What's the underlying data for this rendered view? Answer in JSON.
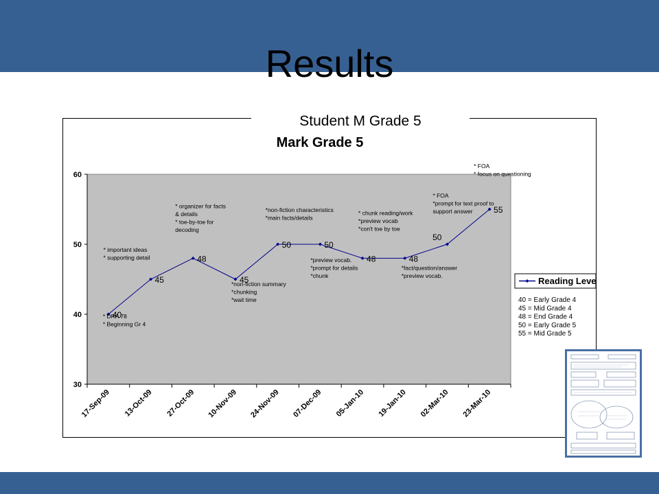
{
  "slide": {
    "title": "Results",
    "subtitle": "Student M  Grade 5"
  },
  "colors": {
    "band": "#376092",
    "plot_bg": "#c0c0c0",
    "series": "#00008b"
  },
  "thumbnail": {
    "icon": "document-thumbnail-icon"
  },
  "chart_data": {
    "type": "line",
    "title": "Mark Grade 5",
    "xlabel": "",
    "ylabel": "",
    "ylim": [
      30,
      60
    ],
    "yticks": [
      30,
      40,
      50,
      60
    ],
    "categories": [
      "17-Sep-09",
      "13-Oct-09",
      "27-Oct-09",
      "10-Nov-09",
      "24-Nov-09",
      "07-Dec-09",
      "05-Jan-10",
      "19-Jan-10",
      "02-Mar-10",
      "23-Mar-10"
    ],
    "series": [
      {
        "name": "Reading Level",
        "values": [
          40,
          45,
          48,
          45,
          50,
          50,
          48,
          48,
          50,
          55
        ],
        "labels": [
          "40",
          "45",
          "48",
          "45",
          "50",
          "50",
          "48",
          "48",
          "50",
          "55"
        ]
      }
    ],
    "grid": false,
    "legend_position": "right",
    "annotations": [
      {
        "index": 0,
        "anchor": "below",
        "lines": [
          "* DRA 78",
          "* Beginning Gr 4"
        ]
      },
      {
        "index": 1,
        "anchor": "above",
        "lines": [
          "* important ideas",
          "* supporting detail"
        ]
      },
      {
        "index": 2,
        "anchor": "above",
        "lines": [
          "* organizer for facts",
          "  & details",
          "* toe-by-toe for",
          "  decoding"
        ]
      },
      {
        "index": 3,
        "anchor": "below",
        "lines": [
          "*non-fiction summary",
          "*chunking",
          "*wait time"
        ]
      },
      {
        "index": 4,
        "anchor": "above",
        "lines": [
          "*non-fiction characteristics",
          "*main facts/details"
        ]
      },
      {
        "index": 5,
        "anchor": "below",
        "lines": [
          "*preview vocab.",
          "*prompt for details",
          "*chunk"
        ]
      },
      {
        "index": 6,
        "anchor": "above",
        "lines": [
          "* chunk reading/work",
          "*preview vocab",
          "*con't toe by toe"
        ]
      },
      {
        "index": 7,
        "anchor": "below",
        "lines": [
          "*fact/question/answer",
          "*preview vocab."
        ]
      },
      {
        "index": 8,
        "anchor": "above",
        "lines": [
          "* FOA",
          "*prompt for text proof to",
          " support answer"
        ]
      },
      {
        "index": 9,
        "anchor": "above",
        "lines": [
          "* FOA",
          "* focus on questioning"
        ]
      }
    ],
    "key": [
      "40 = Early Grade 4",
      "45 = Mid Grade 4",
      "48 = End Grade 4",
      "50 = Early Grade 5",
      "55 = Mid Grade 5"
    ]
  }
}
